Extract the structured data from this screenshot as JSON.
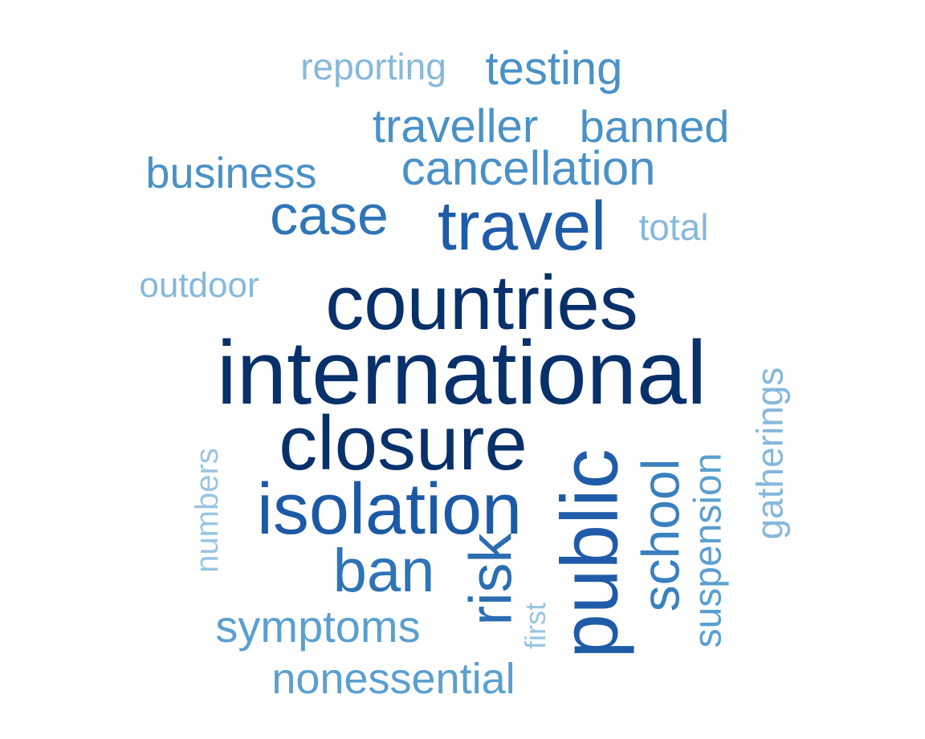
{
  "word_cloud": {
    "words": [
      {
        "text": "international",
        "color": "#08306b",
        "orientation": "horizontal"
      },
      {
        "text": "countries",
        "color": "#08306b",
        "orientation": "horizontal"
      },
      {
        "text": "closure",
        "color": "#08306b",
        "orientation": "horizontal"
      },
      {
        "text": "isolation",
        "color": "#1c5aa6",
        "orientation": "horizontal"
      },
      {
        "text": "travel",
        "color": "#1f5ba8",
        "orientation": "horizontal"
      },
      {
        "text": "case",
        "color": "#2f74b5",
        "orientation": "horizontal"
      },
      {
        "text": "ban",
        "color": "#2f74b5",
        "orientation": "horizontal"
      },
      {
        "text": "public",
        "color": "#1f5ba8",
        "orientation": "vertical"
      },
      {
        "text": "risk",
        "color": "#2a6db2",
        "orientation": "vertical"
      },
      {
        "text": "school",
        "color": "#3a80bf",
        "orientation": "vertical"
      },
      {
        "text": "cancellation",
        "color": "#4a91c7",
        "orientation": "horizontal"
      },
      {
        "text": "testing",
        "color": "#4a91c7",
        "orientation": "horizontal"
      },
      {
        "text": "traveller",
        "color": "#4a91c7",
        "orientation": "horizontal"
      },
      {
        "text": "banned",
        "color": "#4a91c7",
        "orientation": "horizontal"
      },
      {
        "text": "business",
        "color": "#4a91c7",
        "orientation": "horizontal"
      },
      {
        "text": "symptoms",
        "color": "#5b9fd0",
        "orientation": "horizontal"
      },
      {
        "text": "nonessential",
        "color": "#5b9fd0",
        "orientation": "horizontal"
      },
      {
        "text": "suspension",
        "color": "#5b9fd0",
        "orientation": "vertical"
      },
      {
        "text": "reporting",
        "color": "#86b8dc",
        "orientation": "horizontal"
      },
      {
        "text": "total",
        "color": "#86b8dc",
        "orientation": "horizontal"
      },
      {
        "text": "outdoor",
        "color": "#86b8dc",
        "orientation": "horizontal"
      },
      {
        "text": "gatherings",
        "color": "#86b8dc",
        "orientation": "vertical"
      },
      {
        "text": "numbers",
        "color": "#9ac5e2",
        "orientation": "vertical"
      },
      {
        "text": "first",
        "color": "#9ac5e2",
        "orientation": "vertical"
      }
    ]
  }
}
